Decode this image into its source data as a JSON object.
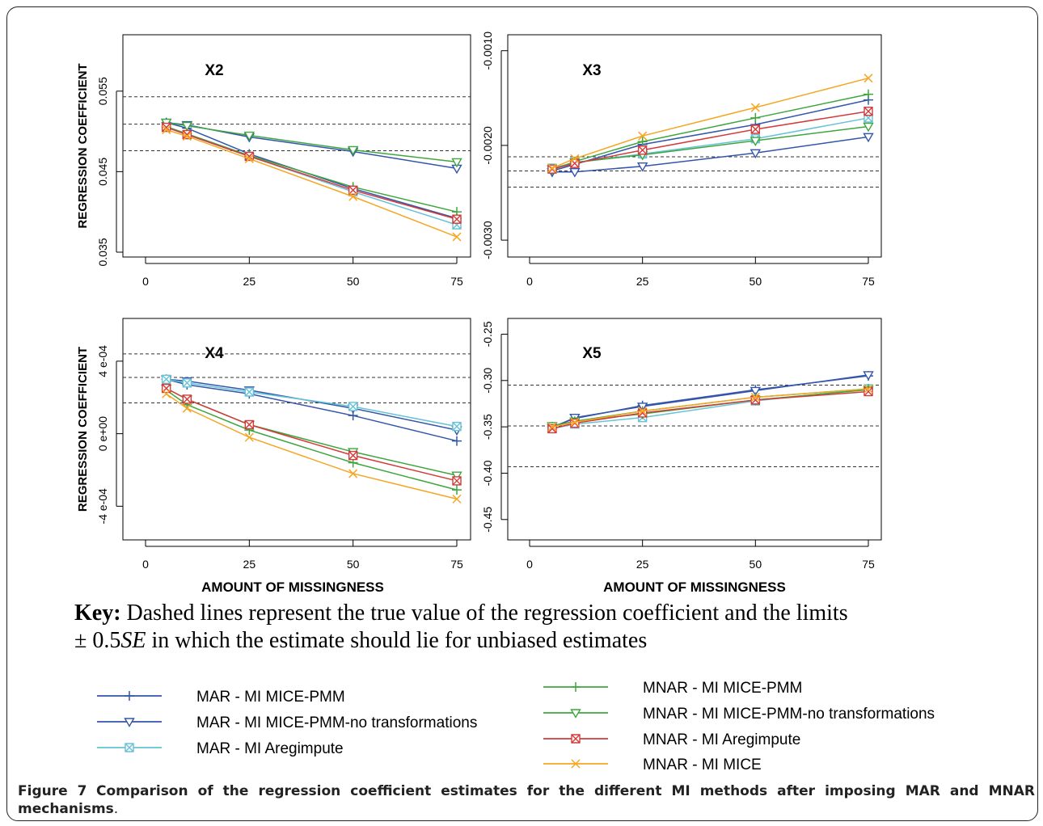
{
  "chart_data": [
    {
      "type": "line",
      "title": "X2",
      "ylabel": "REGRESSION COEFFICIENT",
      "xlabel": "",
      "x": [
        5,
        10,
        25,
        50,
        75
      ],
      "xticks": [
        "0",
        "25",
        "50",
        "75"
      ],
      "xlim": [
        0,
        77
      ],
      "ylim": [
        0.0352,
        0.0612
      ],
      "yticks": [
        {
          "v": 0.035,
          "label": "0.035"
        },
        {
          "v": 0.045,
          "label": "0.045"
        },
        {
          "v": 0.055,
          "label": "0.055"
        }
      ],
      "ref_lines": [
        0.0543,
        0.0509,
        0.0476
      ],
      "series": [
        {
          "key": "mar_pmm",
          "values": [
            0.0511,
            0.0504,
            0.0472,
            0.0429,
            0.0392
          ]
        },
        {
          "key": "mar_pmm_nt",
          "values": [
            0.0511,
            0.0508,
            0.0493,
            0.0475,
            0.0454
          ]
        },
        {
          "key": "mar_areg",
          "values": [
            0.0505,
            0.0496,
            0.0469,
            0.0425,
            0.0384
          ]
        },
        {
          "key": "mnar_pmm",
          "values": [
            0.0506,
            0.0497,
            0.047,
            0.0431,
            0.04
          ]
        },
        {
          "key": "mnar_pmm_nt",
          "values": [
            0.0511,
            0.0507,
            0.0495,
            0.0477,
            0.0462
          ]
        },
        {
          "key": "mnar_areg",
          "values": [
            0.0505,
            0.0496,
            0.0469,
            0.0427,
            0.0391
          ]
        },
        {
          "key": "mnar_mice",
          "values": [
            0.0502,
            0.0494,
            0.0466,
            0.0419,
            0.0369
          ]
        }
      ]
    },
    {
      "type": "line",
      "title": "X3",
      "ylabel": "",
      "xlabel": "",
      "x": [
        5,
        10,
        25,
        50,
        75
      ],
      "xticks": [
        "0",
        "25",
        "50",
        "75"
      ],
      "xlim": [
        0,
        77
      ],
      "ylim": [
        -0.00311,
        -0.0009
      ],
      "yticks": [
        {
          "v": -0.003,
          "label": "-0.0030"
        },
        {
          "v": -0.002,
          "label": "-0.0020"
        },
        {
          "v": -0.001,
          "label": "-0.0010"
        }
      ],
      "ref_lines": [
        -0.00212,
        -0.00227,
        -0.00244
      ],
      "series": [
        {
          "key": "mar_pmm",
          "values": [
            -0.00227,
            -0.0022,
            -0.00199,
            -0.00178,
            -0.00152
          ]
        },
        {
          "key": "mar_pmm_nt",
          "values": [
            -0.00228,
            -0.00228,
            -0.00222,
            -0.00208,
            -0.00191
          ]
        },
        {
          "key": "mar_areg",
          "values": [
            -0.00224,
            -0.00218,
            -0.00209,
            -0.00193,
            -0.00171
          ]
        },
        {
          "key": "mnar_pmm",
          "values": [
            -0.00226,
            -0.00217,
            -0.00196,
            -0.00171,
            -0.00146
          ]
        },
        {
          "key": "mnar_pmm_nt",
          "values": [
            -0.00225,
            -0.00218,
            -0.0021,
            -0.00195,
            -0.0018
          ]
        },
        {
          "key": "mnar_areg",
          "values": [
            -0.00225,
            -0.00219,
            -0.00205,
            -0.00183,
            -0.00164
          ]
        },
        {
          "key": "mnar_mice",
          "values": [
            -0.00224,
            -0.00214,
            -0.0019,
            -0.0016,
            -0.00129
          ]
        }
      ]
    },
    {
      "type": "line",
      "title": "X4",
      "ylabel": "REGRESSION COEFFICIENT",
      "xlabel": "AMOUNT OF MISSINGNESS",
      "x": [
        5,
        10,
        25,
        50,
        75
      ],
      "xticks": [
        "0",
        "25",
        "50",
        "75"
      ],
      "xlim": [
        0,
        77
      ],
      "ylim": [
        -0.00055,
        0.0006
      ],
      "yticks": [
        {
          "v": -0.0004,
          "label": "-4 e-04"
        },
        {
          "v": 0.0,
          "label": "0 e+00"
        },
        {
          "v": 0.0004,
          "label": "4 e-04"
        }
      ],
      "ref_lines": [
        0.00044,
        0.00031,
        0.00017
      ],
      "series": [
        {
          "key": "mar_pmm",
          "values": [
            0.0003,
            0.00027,
            0.00022,
            0.0001,
            -4e-05
          ]
        },
        {
          "key": "mar_pmm_nt",
          "values": [
            0.0003,
            0.00029,
            0.00024,
            0.00014,
            2e-05
          ]
        },
        {
          "key": "mar_areg",
          "values": [
            0.0003,
            0.00028,
            0.00023,
            0.00015,
            4e-05
          ]
        },
        {
          "key": "mnar_pmm",
          "values": [
            0.00024,
            0.00016,
            2e-05,
            -0.00016,
            -0.00031
          ]
        },
        {
          "key": "mnar_pmm_nt",
          "values": [
            0.00025,
            0.00019,
            5e-05,
            -0.0001,
            -0.00023
          ]
        },
        {
          "key": "mnar_areg",
          "values": [
            0.00025,
            0.00019,
            5e-05,
            -0.00012,
            -0.00026
          ]
        },
        {
          "key": "mnar_mice",
          "values": [
            0.00022,
            0.00014,
            -2e-05,
            -0.00022,
            -0.00036
          ]
        }
      ]
    },
    {
      "type": "line",
      "title": "X5",
      "ylabel": "",
      "xlabel": "AMOUNT OF MISSINGNESS",
      "x": [
        5,
        10,
        25,
        50,
        75
      ],
      "xticks": [
        "0",
        "25",
        "50",
        "75"
      ],
      "xlim": [
        0,
        77
      ],
      "ylim": [
        -0.465,
        -0.24
      ],
      "yticks": [
        {
          "v": -0.45,
          "label": "-0.45"
        },
        {
          "v": -0.4,
          "label": "-0.40"
        },
        {
          "v": -0.35,
          "label": "-0.35"
        },
        {
          "v": -0.3,
          "label": "-0.30"
        },
        {
          "v": -0.25,
          "label": "-0.25"
        }
      ],
      "ref_lines": [
        -0.305,
        -0.349,
        -0.393
      ],
      "series": [
        {
          "key": "mar_pmm",
          "values": [
            -0.35,
            -0.341,
            -0.327,
            -0.31,
            -0.295
          ]
        },
        {
          "key": "mar_pmm_nt",
          "values": [
            -0.351,
            -0.34,
            -0.328,
            -0.311,
            -0.294
          ]
        },
        {
          "key": "mar_areg",
          "values": [
            -0.352,
            -0.347,
            -0.34,
            -0.322,
            -0.309
          ]
        },
        {
          "key": "mnar_pmm",
          "values": [
            -0.35,
            -0.344,
            -0.333,
            -0.318,
            -0.309
          ]
        },
        {
          "key": "mnar_pmm_nt",
          "values": [
            -0.349,
            -0.344,
            -0.336,
            -0.321,
            -0.31
          ]
        },
        {
          "key": "mnar_areg",
          "values": [
            -0.352,
            -0.346,
            -0.335,
            -0.321,
            -0.312
          ]
        },
        {
          "key": "mnar_mice",
          "values": [
            -0.35,
            -0.345,
            -0.333,
            -0.318,
            -0.309
          ]
        }
      ]
    }
  ],
  "legend": [
    {
      "key": "mar_pmm",
      "label": "MAR - MI MICE-PMM",
      "color": "#3355aa",
      "marker": "plus"
    },
    {
      "key": "mar_pmm_nt",
      "label": "MAR - MI MICE-PMM-no transformations",
      "color": "#3355aa",
      "marker": "triangle"
    },
    {
      "key": "mar_areg",
      "label": "MAR - MI Aregimpute",
      "color": "#66c2d6",
      "marker": "boxx"
    },
    {
      "key": "mnar_pmm",
      "label": "MNAR - MI MICE-PMM",
      "color": "#3fa63f",
      "marker": "plus"
    },
    {
      "key": "mnar_pmm_nt",
      "label": "MNAR - MI MICE-PMM-no transformations",
      "color": "#3fa63f",
      "marker": "triangle"
    },
    {
      "key": "mnar_areg",
      "label": "MNAR - MI Aregimpute",
      "color": "#d43a3a",
      "marker": "boxx"
    },
    {
      "key": "mnar_mice",
      "label": "MNAR - MI MICE",
      "color": "#f5a623",
      "marker": "x"
    }
  ],
  "key_text": {
    "bold": "Key:",
    "line1": " Dashed lines represent the true value of the regression coefficient and the limits",
    "pm": "± 0.5",
    "se": "SE",
    "line2": "  in which the estimate should lie for unbiased estimates"
  },
  "caption": {
    "figno": "Figure 7",
    "title": "Comparison of the regression coefficient estimates for the different MI methods after imposing MAR and MNAR mechanisms",
    "end": "."
  }
}
